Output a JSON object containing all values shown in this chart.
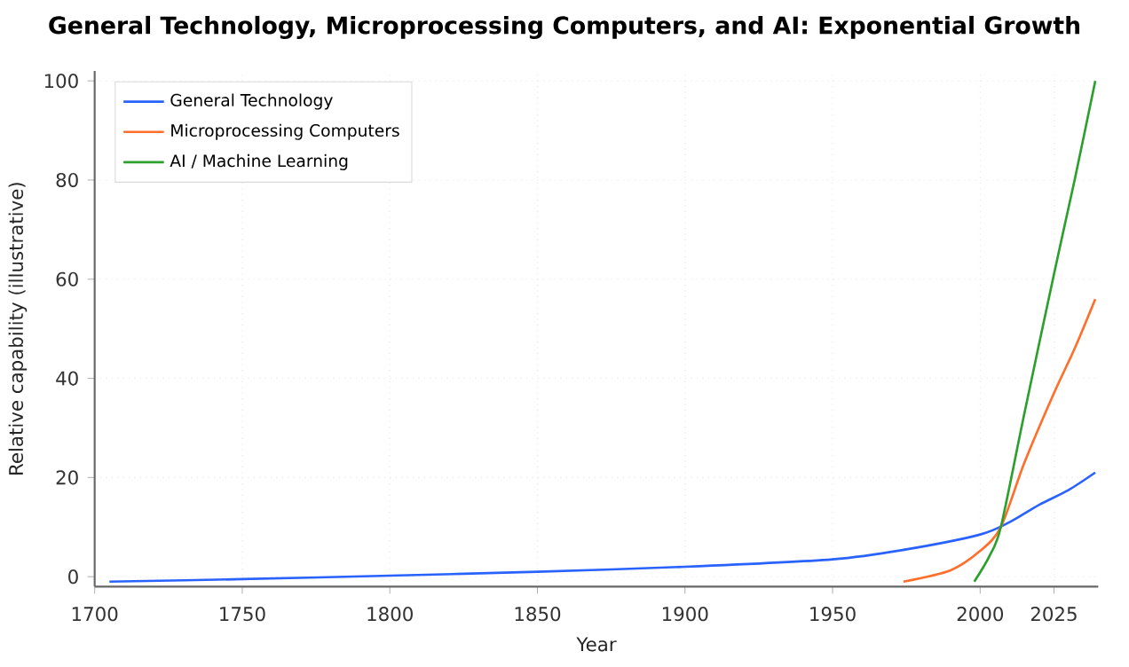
{
  "chart_data": {
    "type": "line",
    "title": "General Technology, Microprocessing Computers, and AI: Exponential Growth",
    "xlabel": "Year",
    "ylabel": "Relative capability (illustrative)",
    "xlim": [
      1700,
      2040
    ],
    "xticks": [
      1700,
      1750,
      1800,
      1850,
      1900,
      1950,
      2000,
      2025
    ],
    "ylim": [
      -2,
      102
    ],
    "yticks": [
      0,
      20,
      40,
      60,
      80,
      100
    ],
    "grid": true,
    "legend": "top left",
    "line_style": "solid",
    "marker": "none",
    "series": [
      {
        "name": "General Technology",
        "color": "#2962ff",
        "x": [
          1705,
          1750,
          1800,
          1850,
          1900,
          1950,
          1975,
          2000,
          2010,
          2020,
          2030,
          2039
        ],
        "values": [
          -1,
          -0.5,
          0.2,
          1,
          2,
          3.5,
          5.5,
          8.5,
          11,
          14.5,
          17.5,
          21
        ]
      },
      {
        "name": "Microprocessing Computers",
        "color": "#ff6f2c",
        "x": [
          1974,
          1990,
          2000,
          2007,
          2015,
          2025,
          2032,
          2039
        ],
        "values": [
          -1,
          1.3,
          5.2,
          10,
          23,
          37,
          46,
          56
        ]
      },
      {
        "name": "AI / Machine Learning",
        "color": "#2ca02c",
        "x": [
          1998,
          2003,
          2007,
          2015,
          2025,
          2032,
          2039
        ],
        "values": [
          -1,
          4,
          10,
          33,
          61,
          80,
          100
        ]
      }
    ]
  }
}
